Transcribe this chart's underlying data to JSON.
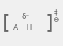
{
  "line1": "δ⁻",
  "line2": "A····H",
  "superscript": "‡",
  "charge": "⊖",
  "bracket_color": "#666666",
  "text_color": "#666666",
  "bg_color": "#f0f0f0",
  "font_size": 6.5,
  "bracket_font_size": 18,
  "super_font_size": 6.5
}
